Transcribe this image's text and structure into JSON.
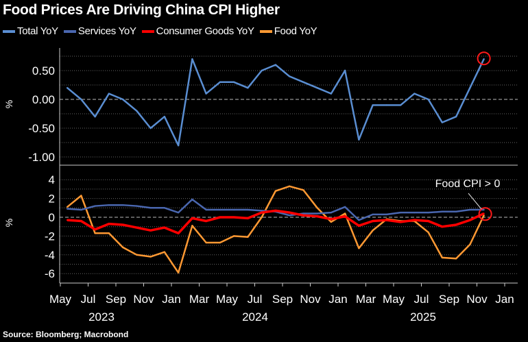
{
  "chart_data": [
    {
      "type": "line",
      "title": "Food Prices Are Driving China CPI Higher",
      "ylabel": "%",
      "ylim": [
        -1.15,
        0.9
      ],
      "yticks": [
        "0.50",
        "0.00",
        "-0.50",
        "-1.00"
      ],
      "x": [
        "May 2023",
        "Jun 2023",
        "Jul 2023",
        "Aug 2023",
        "Sep 2023",
        "Oct 2023",
        "Nov 2023",
        "Dec 2023",
        "Jan 2024",
        "Feb 2024",
        "Mar 2024",
        "Apr 2024",
        "May 2024",
        "Jun 2024",
        "Jul 2024",
        "Aug 2024",
        "Sep 2024",
        "Oct 2024",
        "Nov 2024",
        "Dec 2024",
        "Jan 2025",
        "Feb 2025",
        "Mar 2025",
        "Apr 2025",
        "May 2025",
        "Jun 2025",
        "Jul 2025",
        "Aug 2025",
        "Sep 2025",
        "Oct 2025",
        "Nov 2025"
      ],
      "grid": true,
      "series": [
        {
          "name": "Total YoY",
          "color": "#5a8ed2",
          "values": [
            0.2,
            0.0,
            -0.3,
            0.1,
            0.0,
            -0.2,
            -0.5,
            -0.3,
            -0.8,
            0.7,
            0.1,
            0.3,
            0.3,
            0.2,
            0.5,
            0.6,
            0.4,
            0.3,
            0.2,
            0.1,
            0.5,
            -0.7,
            -0.1,
            -0.1,
            -0.1,
            0.1,
            0.0,
            -0.4,
            -0.3,
            0.2,
            0.7
          ]
        }
      ],
      "highlight": "last point circled"
    },
    {
      "type": "line",
      "ylabel": "%",
      "ylim": [
        -7,
        5
      ],
      "yticks": [
        "4",
        "2",
        "0",
        "-2",
        "-4",
        "-6"
      ],
      "x_tick_labels": [
        "May",
        "Jul",
        "Sep",
        "Nov",
        "Jan",
        "Mar",
        "May",
        "Jul",
        "Sep",
        "Nov",
        "Jan",
        "Mar",
        "May",
        "Jul",
        "Sep",
        "Nov",
        "Jan"
      ],
      "year_labels": [
        "2023",
        "2024",
        "2025"
      ],
      "grid": true,
      "annotation": "Food CPI > 0",
      "series": [
        {
          "name": "Services YoY",
          "color": "#4a67b0",
          "values": [
            0.9,
            0.8,
            1.2,
            1.3,
            1.3,
            1.2,
            1.0,
            1.0,
            0.5,
            1.9,
            0.8,
            0.8,
            0.8,
            0.8,
            0.7,
            0.6,
            0.2,
            0.4,
            0.4,
            0.5,
            1.1,
            -0.3,
            0.3,
            0.3,
            0.5,
            0.5,
            0.5,
            0.6,
            0.6,
            0.8,
            0.8
          ]
        },
        {
          "name": "Consumer Goods YoY",
          "color": "#ff0000",
          "values": [
            -0.3,
            -0.4,
            -1.3,
            -0.7,
            -0.8,
            -1.1,
            -1.4,
            -1.1,
            -1.7,
            -0.1,
            -0.4,
            0.0,
            0.0,
            -0.1,
            0.5,
            0.7,
            0.5,
            0.2,
            0.1,
            -0.2,
            0.1,
            -0.9,
            -0.4,
            -0.3,
            -0.5,
            -0.3,
            -0.4,
            -1.0,
            -0.8,
            -0.3,
            0.4
          ]
        },
        {
          "name": "Food YoY",
          "color": "#ff9933",
          "values": [
            1.1,
            2.3,
            -1.7,
            -1.7,
            -3.2,
            -4.0,
            -4.2,
            -3.7,
            -5.9,
            -0.9,
            -2.7,
            -2.7,
            -2.0,
            -2.1,
            0.0,
            2.8,
            3.3,
            2.9,
            1.0,
            -0.5,
            0.4,
            -3.3,
            -1.4,
            -0.2,
            -0.4,
            -0.4,
            -1.6,
            -4.3,
            -4.4,
            -2.9,
            0.2
          ]
        }
      ]
    }
  ],
  "source": "Source: Bloomberg; Macrobond"
}
